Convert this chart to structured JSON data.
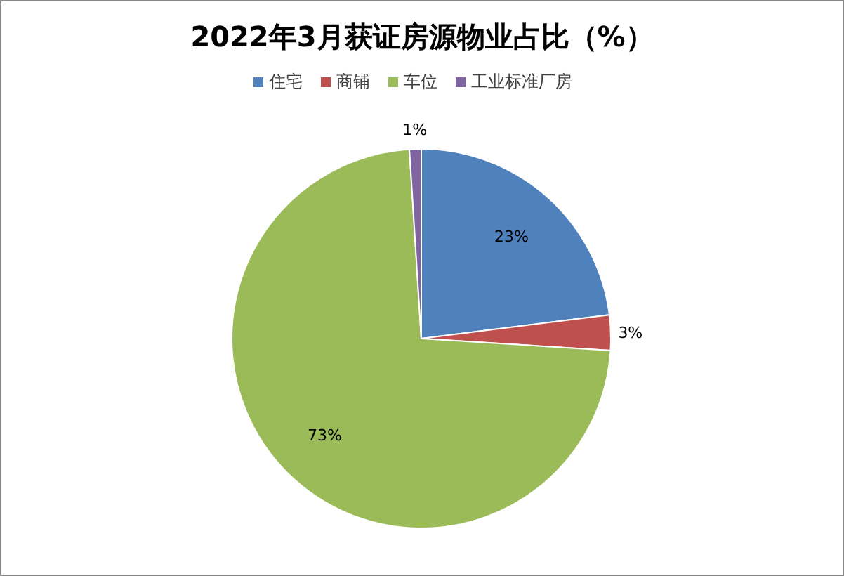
{
  "chart_data": {
    "type": "pie",
    "title": "2022年3月获证房源物业占比（%）",
    "categories": [
      "住宅",
      "商铺",
      "车位",
      "工业标准厂房"
    ],
    "values": [
      23,
      3,
      73,
      1
    ],
    "colors": [
      "#4f81bd",
      "#c0504d",
      "#9bbb59",
      "#8064a2"
    ],
    "value_labels": [
      "23%",
      "3%",
      "73%",
      "1%"
    ],
    "legend": "top"
  }
}
